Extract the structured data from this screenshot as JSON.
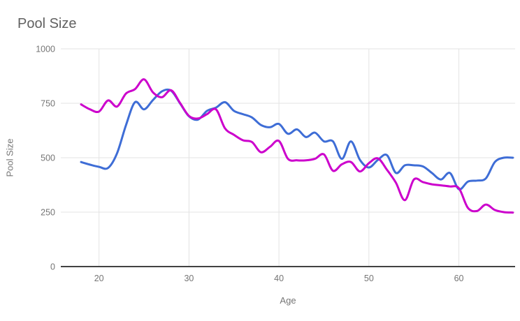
{
  "chart_data": {
    "type": "line",
    "title": "Pool Size",
    "xlabel": "Age",
    "ylabel": "Pool Size",
    "grid": true,
    "legend": "none",
    "x_ticks": [
      20,
      30,
      40,
      50,
      60
    ],
    "y_ticks": [
      0,
      250,
      500,
      750,
      1000
    ],
    "xlim": [
      15.75,
      66.25
    ],
    "ylim": [
      0,
      1000
    ],
    "x": [
      18,
      19,
      20,
      21,
      22,
      23,
      24,
      25,
      26,
      27,
      28,
      29,
      30,
      31,
      32,
      33,
      34,
      35,
      36,
      37,
      38,
      39,
      40,
      41,
      42,
      43,
      44,
      45,
      46,
      47,
      48,
      49,
      50,
      51,
      52,
      53,
      54,
      55,
      56,
      57,
      58,
      59,
      60,
      61,
      62,
      63,
      64,
      65,
      66
    ],
    "series": [
      {
        "id": "series-1",
        "color": "#3E6DD6",
        "values": [
          480,
          468,
          458,
          453,
          520,
          650,
          755,
          722,
          765,
          805,
          808,
          750,
          690,
          675,
          715,
          730,
          755,
          715,
          700,
          685,
          650,
          640,
          655,
          610,
          630,
          595,
          615,
          575,
          575,
          495,
          575,
          490,
          455,
          490,
          512,
          430,
          465,
          465,
          460,
          430,
          400,
          430,
          355,
          390,
          395,
          405,
          480,
          500,
          500
        ]
      },
      {
        "id": "series-2",
        "color": "#CC00CC",
        "values": [
          745,
          722,
          712,
          763,
          735,
          795,
          815,
          860,
          800,
          778,
          810,
          752,
          692,
          680,
          700,
          722,
          635,
          605,
          580,
          572,
          525,
          550,
          577,
          495,
          488,
          488,
          495,
          515,
          440,
          470,
          480,
          437,
          475,
          497,
          445,
          385,
          305,
          400,
          388,
          378,
          373,
          368,
          360,
          270,
          255,
          285,
          260,
          250,
          248
        ]
      }
    ],
    "colors": {
      "gridline": "#E3E3E3",
      "axis_line": "#424242",
      "tick_label": "#757575",
      "title": "#616161"
    }
  }
}
